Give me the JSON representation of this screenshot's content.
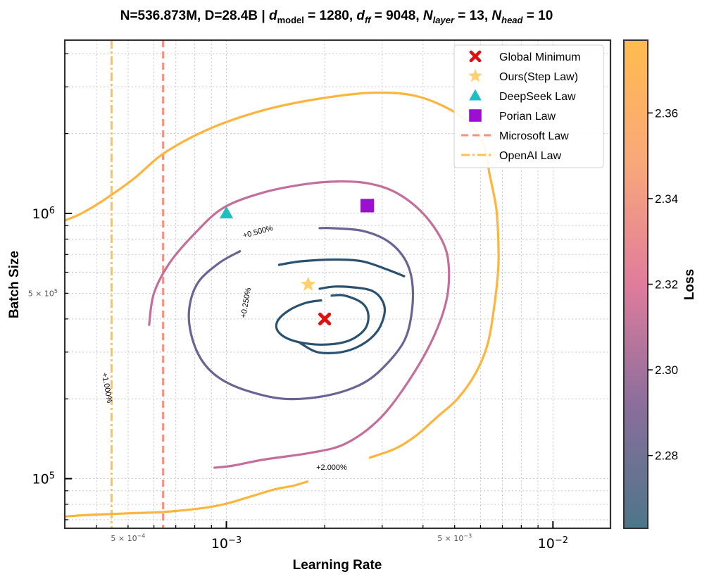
{
  "chart_data": {
    "type": "contour",
    "title_prefix": "N=536.873M, D=28.4B | ",
    "title_parts": [
      {
        "t": "d",
        "i": true
      },
      {
        "t": "model",
        "sub": true
      },
      {
        "t": " = 1280, "
      },
      {
        "t": "d",
        "i": true
      },
      {
        "t": "ff",
        "sub": true,
        "i": true
      },
      {
        "t": " = 9048, "
      },
      {
        "t": "N",
        "i": true
      },
      {
        "t": "layer",
        "sub": true,
        "i": true
      },
      {
        "t": " = 13, "
      },
      {
        "t": "N",
        "i": true
      },
      {
        "t": "head",
        "sub": true,
        "i": true
      },
      {
        "t": " = 10"
      }
    ],
    "xlabel": "Learning Rate",
    "ylabel": "Batch Size",
    "xscale": "log",
    "yscale": "log",
    "xlim": [
      0.00032,
      0.015
    ],
    "ylim": [
      65000,
      4500000
    ],
    "x_major_ticks": [
      {
        "v": 0.001,
        "base": "10",
        "exp": "−3"
      },
      {
        "v": 0.01,
        "base": "10",
        "exp": "−2"
      }
    ],
    "x_minor_labels": [
      {
        "v": 0.0005,
        "base": "5 × 10",
        "exp": "−4"
      },
      {
        "v": 0.005,
        "base": "5 × 10",
        "exp": "−3"
      }
    ],
    "y_major_ticks": [
      {
        "v": 100000,
        "base": "10",
        "exp": "5"
      },
      {
        "v": 1000000,
        "base": "10",
        "exp": "6"
      }
    ],
    "y_minor_labels": [
      {
        "v": 500000,
        "base": "5 × 10",
        "exp": "5"
      }
    ],
    "grid": true,
    "colorbar": {
      "label": "Loss",
      "ticks": [
        2.28,
        2.3,
        2.32,
        2.34,
        2.36
      ],
      "tick_labels": [
        "2.28",
        "2.30",
        "2.32",
        "2.34",
        "2.36"
      ],
      "range": [
        2.263,
        2.377
      ],
      "colors": [
        "#4d7689",
        "#8a6e9c",
        "#e07c9c",
        "#f9a87a",
        "#ffbb4e"
      ]
    },
    "contours": [
      {
        "label": "+0.250%",
        "color": "#2a5270",
        "label_pos": [
          0.00115,
          460000
        ],
        "label_angle": -80,
        "points": [
          [
            0.00168,
            325000
          ],
          [
            0.0019,
            300000
          ],
          [
            0.00225,
            300000
          ],
          [
            0.0026,
            320000
          ],
          [
            0.0029,
            360000
          ],
          [
            0.00305,
            420000
          ],
          [
            0.003,
            470000
          ],
          [
            0.0028,
            510000
          ],
          [
            0.0025,
            525000
          ],
          [
            0.00215,
            530000
          ],
          [
            0.00193,
            520000
          ]
        ]
      },
      {
        "label": "",
        "color": "#2a5270",
        "points": [
          [
            0.00195,
            470000
          ],
          [
            0.00175,
            460000
          ],
          [
            0.00155,
            430000
          ],
          [
            0.00143,
            390000
          ],
          [
            0.00145,
            355000
          ],
          [
            0.00162,
            330000
          ],
          [
            0.00195,
            320000
          ],
          [
            0.00235,
            330000
          ],
          [
            0.00265,
            365000
          ],
          [
            0.00272,
            415000
          ],
          [
            0.0026,
            460000
          ],
          [
            0.0023,
            490000
          ],
          [
            0.0021,
            490000
          ]
        ]
      },
      {
        "label": "",
        "color": "#2a5270",
        "points": [
          [
            0.00145,
            640000
          ],
          [
            0.0017,
            660000
          ],
          [
            0.00215,
            670000
          ],
          [
            0.0026,
            660000
          ],
          [
            0.00305,
            620000
          ],
          [
            0.0035,
            580000
          ]
        ]
      },
      {
        "label": "+0.500%",
        "color": "#6b6295",
        "label_pos": [
          0.00125,
          850000
        ],
        "label_angle": -15,
        "points": [
          [
            0.0011,
            720000
          ],
          [
            0.00095,
            650000
          ],
          [
            0.00082,
            550000
          ],
          [
            0.00077,
            440000
          ],
          [
            0.00078,
            350000
          ],
          [
            0.00084,
            280000
          ],
          [
            0.00095,
            240000
          ],
          [
            0.00115,
            215000
          ],
          [
            0.0015,
            200000
          ],
          [
            0.002,
            205000
          ],
          [
            0.00255,
            225000
          ],
          [
            0.003,
            260000
          ],
          [
            0.0035,
            330000
          ],
          [
            0.0037,
            430000
          ],
          [
            0.0037,
            560000
          ],
          [
            0.0035,
            680000
          ],
          [
            0.0031,
            790000
          ],
          [
            0.0026,
            860000
          ],
          [
            0.0021,
            880000
          ],
          [
            0.00193,
            880000
          ]
        ]
      },
      {
        "label": "",
        "color": "#c36e9b",
        "points": [
          [
            0.00058,
            380000
          ],
          [
            0.0006,
            500000
          ],
          [
            0.00067,
            650000
          ],
          [
            0.0008,
            840000
          ],
          [
            0.00098,
            1050000
          ],
          [
            0.0013,
            1200000
          ],
          [
            0.00175,
            1290000
          ],
          [
            0.0022,
            1320000
          ],
          [
            0.0027,
            1300000
          ],
          [
            0.0033,
            1200000
          ],
          [
            0.004,
            1000000
          ],
          [
            0.0046,
            780000
          ],
          [
            0.0048,
            620000
          ],
          [
            0.0047,
            460000
          ],
          [
            0.0042,
            320000
          ],
          [
            0.0035,
            220000
          ],
          [
            0.0029,
            165000
          ],
          [
            0.0023,
            135000
          ],
          [
            0.0018,
            125000
          ],
          [
            0.0013,
            118000
          ],
          [
            0.00105,
            112000
          ],
          [
            0.00092,
            110000
          ]
        ]
      },
      {
        "label": "+1.000%",
        "color": "#ffb43c",
        "label_pos": [
          0.00043,
          220000
        ],
        "label_angle": 80,
        "points": [
          [
            0.00032,
            940000
          ],
          [
            0.00036,
            1000000
          ],
          [
            0.00042,
            1120000
          ],
          [
            0.00052,
            1350000
          ],
          [
            0.00065,
            1700000
          ],
          [
            0.0009,
            2100000
          ],
          [
            0.0013,
            2450000
          ],
          [
            0.0019,
            2700000
          ],
          [
            0.0028,
            2850000
          ],
          [
            0.0039,
            2750000
          ],
          [
            0.0053,
            2300000
          ],
          [
            0.0061,
            1850000
          ],
          [
            0.0064,
            1400000
          ],
          [
            0.0067,
            1050000
          ],
          [
            0.0068,
            800000
          ],
          [
            0.0068,
            620000
          ],
          [
            0.0066,
            440000
          ],
          [
            0.0063,
            320000
          ],
          [
            0.0058,
            250000
          ],
          [
            0.0051,
            200000
          ],
          [
            0.0044,
            170000
          ],
          [
            0.0038,
            145000
          ],
          [
            0.0033,
            130000
          ],
          [
            0.00275,
            120000
          ]
        ]
      },
      {
        "label": "+2.000%",
        "color": "#ffb43c",
        "label_pos": [
          0.0021,
          110000
        ],
        "label_angle": 0,
        "points": [
          [
            0.00032,
            72000
          ],
          [
            0.00038,
            73000
          ],
          [
            0.0005,
            74000
          ],
          [
            0.00065,
            75000
          ],
          [
            0.00085,
            77500
          ],
          [
            0.001,
            80500
          ],
          [
            0.0012,
            86000
          ],
          [
            0.0014,
            91000
          ],
          [
            0.0016,
            94000
          ],
          [
            0.00177,
            97500
          ]
        ]
      }
    ],
    "vertical_lines": [
      {
        "name": "Microsoft Law",
        "x": 0.00064,
        "color": "#f9907d",
        "dash": "10,6"
      },
      {
        "name": "OpenAI Law",
        "x": 0.000445,
        "color": "#ffc24d",
        "dash": "12,4,3,4"
      }
    ],
    "markers": [
      {
        "name": "Global Minimum",
        "x": 0.002,
        "y": 400000,
        "symbol": "x",
        "color": "#e01010"
      },
      {
        "name": "Ours(Step Law)",
        "x": 0.00178,
        "y": 540000,
        "symbol": "star",
        "color": "#fed170"
      },
      {
        "name": "DeepSeek Law",
        "x": 0.001,
        "y": 1000000,
        "symbol": "triangle",
        "color": "#1ebfc3"
      },
      {
        "name": "Porian Law",
        "x": 0.0027,
        "y": 1070000,
        "symbol": "square",
        "color": "#9d0fd0"
      }
    ],
    "legend": {
      "position": "top-right",
      "entries": [
        "Global Minimum",
        "Ours(Step Law)",
        "DeepSeek Law",
        "Porian Law",
        "Microsoft Law",
        "OpenAI Law"
      ]
    }
  }
}
